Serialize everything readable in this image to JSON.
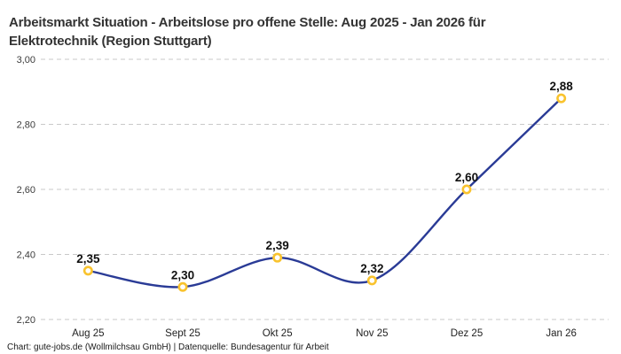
{
  "title_lines": [
    "Arbeitsmarkt Situation - Arbeitslose pro offene Stelle: Aug 2025 - Jan 2026 für",
    "Elektrotechnik (Region Stuttgart)"
  ],
  "footer": "Chart: gute-jobs.de (Wollmilchsau GmbH) | Datenquelle: Bundesagentur für Arbeit",
  "chart_data": {
    "type": "line",
    "title": "Arbeitsmarkt Situation - Arbeitslose pro offene Stelle: Aug 2025 - Jan 2026 für Elektrotechnik (Region Stuttgart)",
    "categories": [
      "Aug 25",
      "Sept 25",
      "Okt 25",
      "Nov 25",
      "Dez 25",
      "Jan 26"
    ],
    "values": [
      2.35,
      2.3,
      2.39,
      2.32,
      2.6,
      2.88
    ],
    "value_labels": [
      "2,35",
      "2,30",
      "2,39",
      "2,32",
      "2,60",
      "2,88"
    ],
    "xlabel": "",
    "ylabel": "",
    "ylim": [
      2.2,
      3.0
    ],
    "ytick_step": 0.2,
    "ytick_labels": [
      "2,20",
      "2,40",
      "2,60",
      "2,80",
      "3,00"
    ],
    "legend": "none",
    "grid": "horizontal-dashed",
    "colors": {
      "line": "#2a3b96",
      "marker_ring": "#f9c32e",
      "marker_fill": "#ffffff",
      "grid": "#c9c9c9",
      "tick_text": "#3c3c3c",
      "axis_text": "#222222",
      "data_label": "#111111",
      "title_text": "#333333"
    }
  }
}
